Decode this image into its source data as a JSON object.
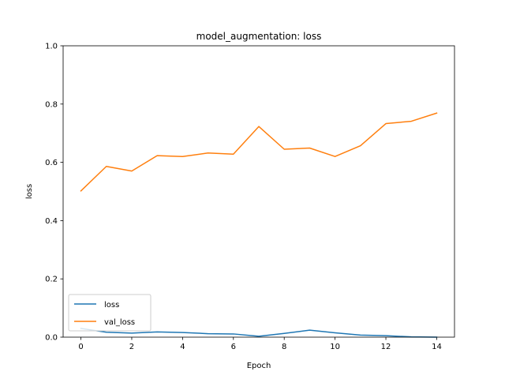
{
  "chart_data": {
    "type": "line",
    "title": "model_augmentation: loss",
    "xlabel": "Epoch",
    "ylabel": "loss",
    "xlim": [
      -0.7,
      14.7
    ],
    "ylim": [
      0.0,
      1.0
    ],
    "xticks": [
      0,
      2,
      4,
      6,
      8,
      10,
      12,
      14
    ],
    "xtick_labels": [
      "0",
      "2",
      "4",
      "6",
      "8",
      "10",
      "12",
      "14"
    ],
    "yticks": [
      0.0,
      0.2,
      0.4,
      0.6,
      0.8,
      1.0
    ],
    "ytick_labels": [
      "0.0",
      "0.2",
      "0.4",
      "0.6",
      "0.8",
      "1.0"
    ],
    "grid": false,
    "legend_position": "lower-left",
    "x": [
      0,
      1,
      2,
      3,
      4,
      5,
      6,
      7,
      8,
      9,
      10,
      11,
      12,
      13,
      14
    ],
    "series": [
      {
        "name": "loss",
        "color": "#1f77b4",
        "values": [
          0.03,
          0.017,
          0.014,
          0.018,
          0.016,
          0.012,
          0.011,
          0.003,
          0.013,
          0.024,
          0.015,
          0.007,
          0.005,
          0.001,
          0.0
        ]
      },
      {
        "name": "val_loss",
        "color": "#ff7f0e",
        "values": [
          0.502,
          0.586,
          0.57,
          0.623,
          0.62,
          0.632,
          0.628,
          0.723,
          0.645,
          0.649,
          0.62,
          0.657,
          0.733,
          0.741,
          0.769
        ]
      }
    ]
  }
}
